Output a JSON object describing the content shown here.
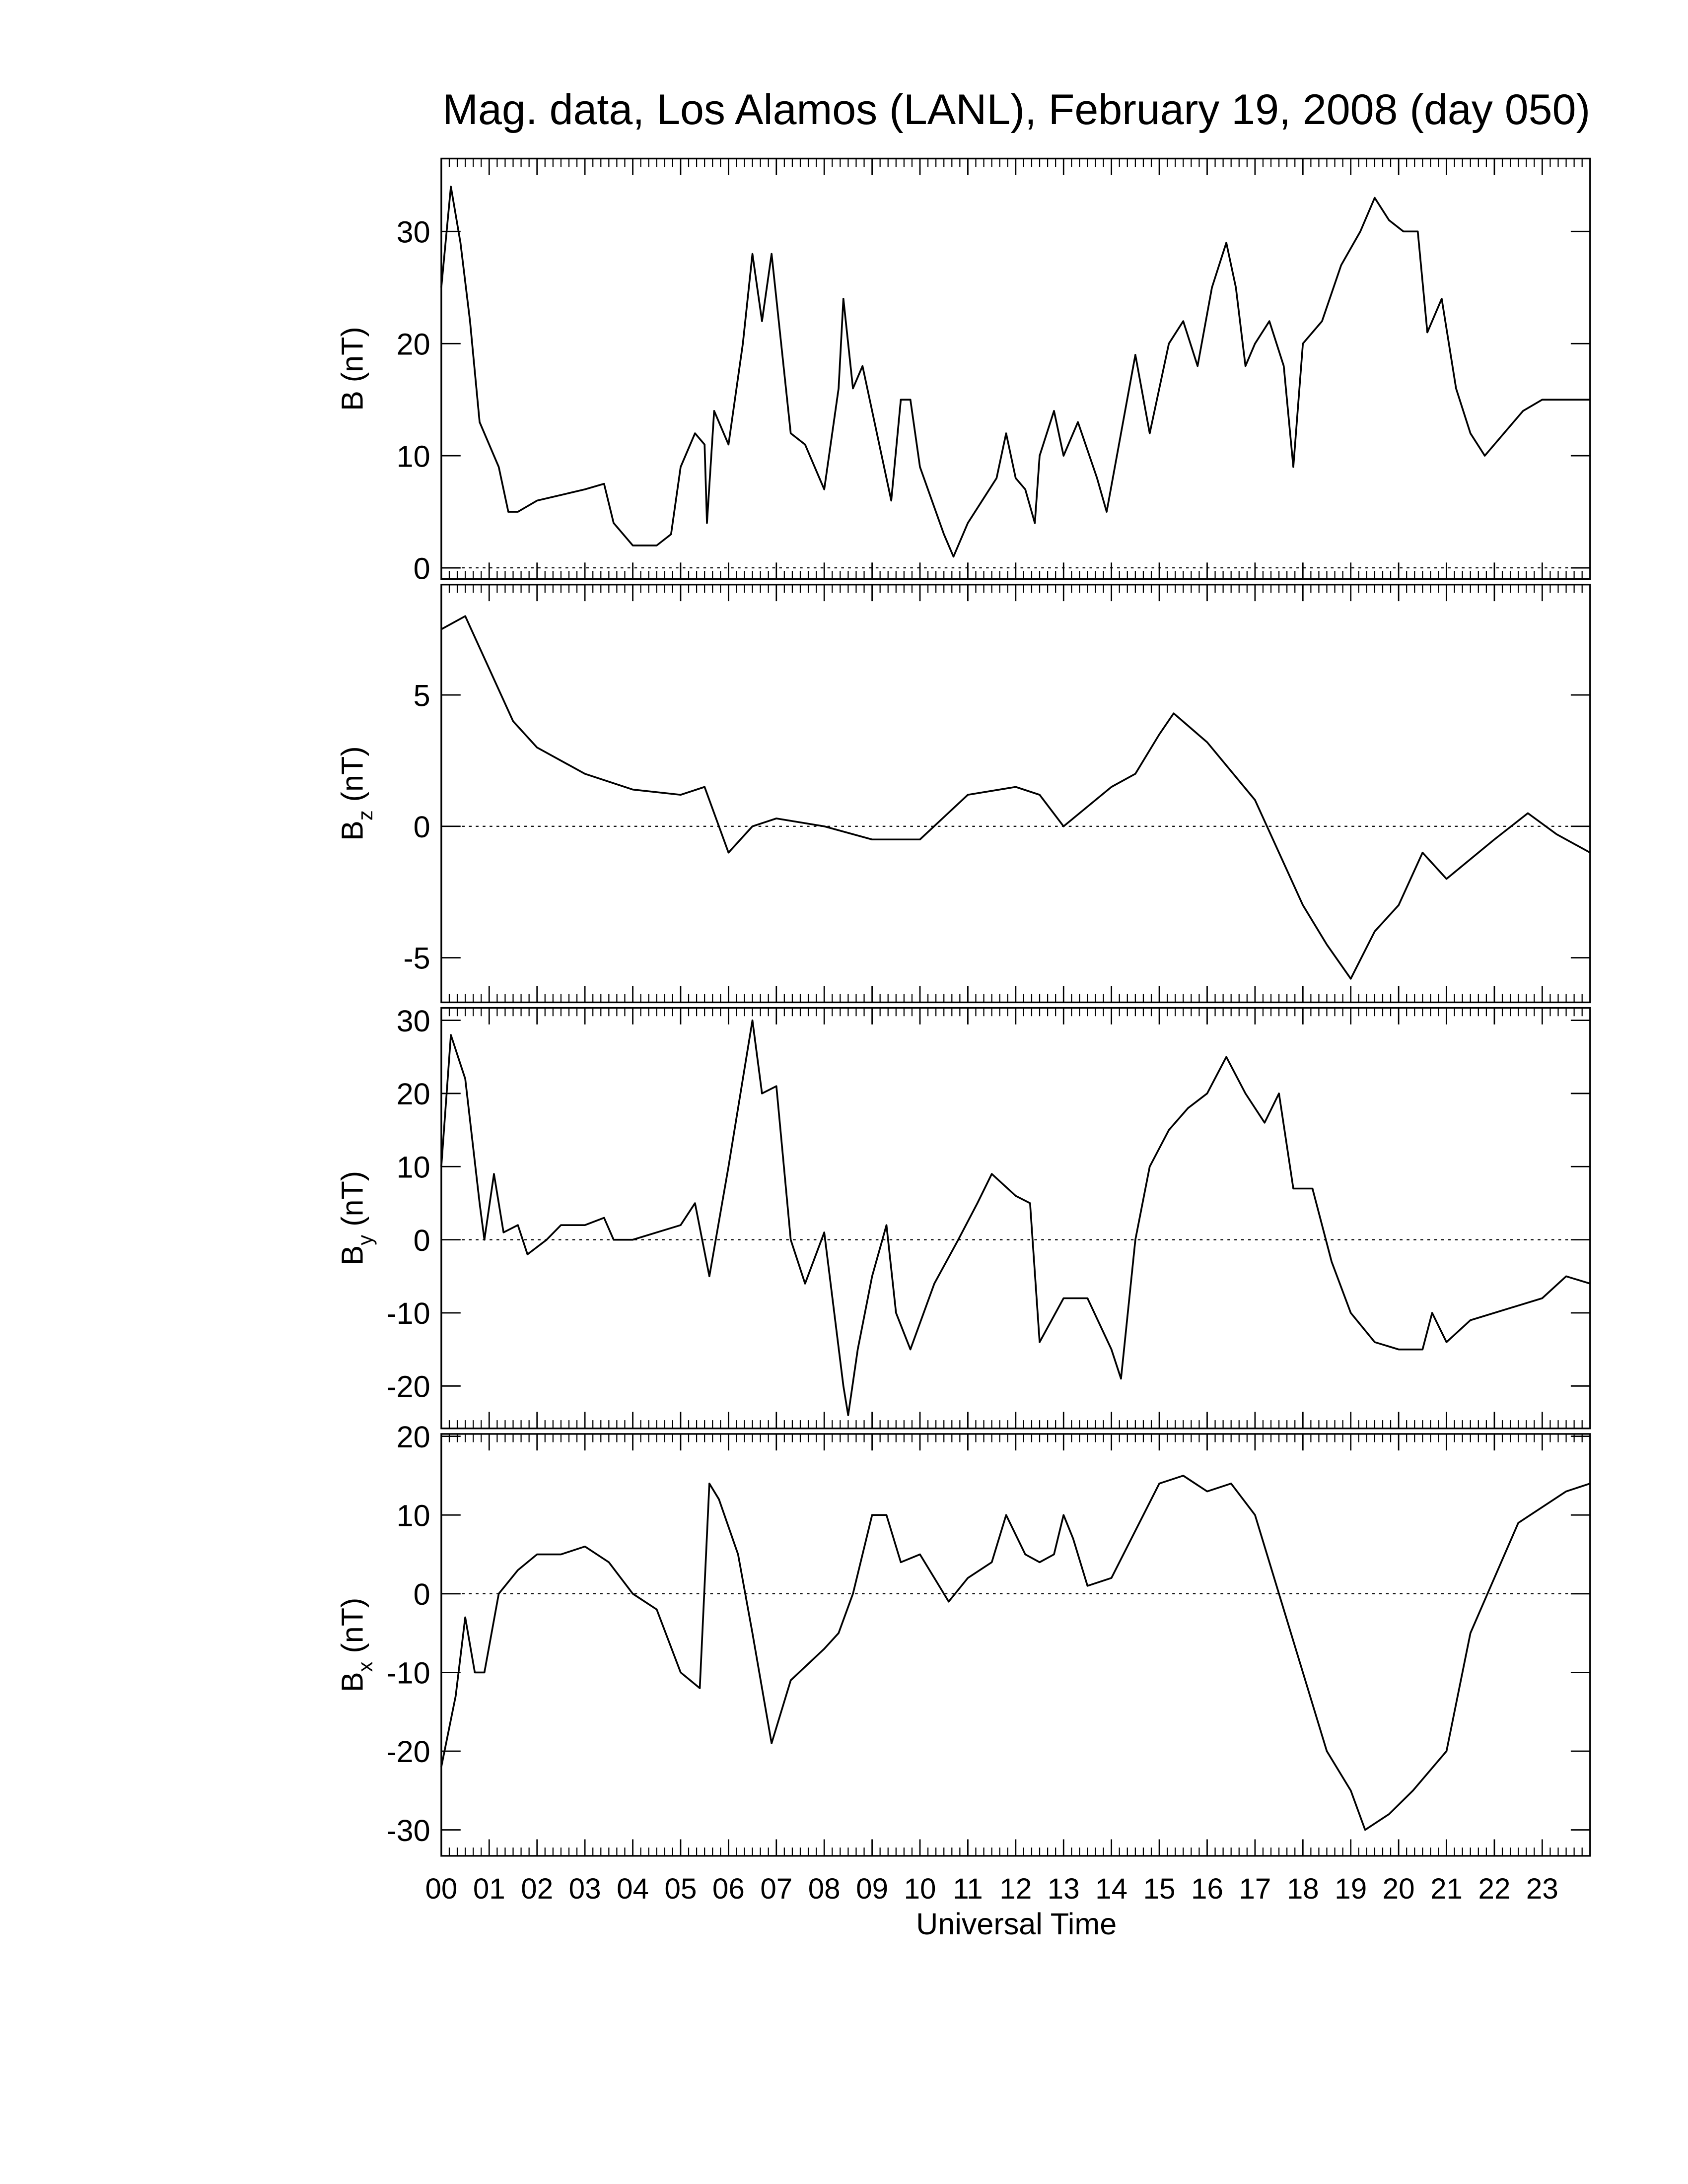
{
  "chart_data": [
    {
      "type": "line",
      "title": "Mag. data, Los Alamos (LANL), February 19, 2008 (day 050)",
      "ylabel": "B (nT)",
      "x": [
        0,
        0.2,
        0.4,
        0.6,
        0.8,
        1.0,
        1.2,
        1.4,
        1.6,
        2,
        2.5,
        3,
        3.4,
        3.6,
        4,
        4.5,
        4.8,
        5,
        5.3,
        5.5,
        5.55,
        5.7,
        6,
        6.3,
        6.5,
        6.7,
        6.9,
        7.1,
        7.3,
        7.6,
        8,
        8.3,
        8.4,
        8.6,
        8.8,
        9,
        9.2,
        9.4,
        9.6,
        9.8,
        10,
        10.5,
        10.7,
        11,
        11.3,
        11.6,
        11.8,
        12,
        12.2,
        12.4,
        12.5,
        12.8,
        13,
        13.3,
        13.7,
        13.9,
        14.2,
        14.5,
        14.8,
        15,
        15.2,
        15.5,
        15.8,
        16.1,
        16.4,
        16.6,
        16.8,
        17,
        17.3,
        17.6,
        17.8,
        18,
        18.4,
        18.8,
        19.2,
        19.5,
        19.8,
        20.1,
        20.4,
        20.6,
        20.9,
        21.2,
        21.5,
        21.8,
        22.2,
        22.6,
        23,
        23.5,
        24
      ],
      "series": [
        {
          "name": "B",
          "color": "#000000",
          "values": [
            25,
            34,
            29,
            22,
            13,
            11,
            9,
            5,
            5,
            6,
            6.5,
            7,
            7.5,
            4,
            2,
            2,
            3,
            9,
            12,
            11,
            4,
            14,
            11,
            20,
            28,
            22,
            28,
            20,
            12,
            11,
            7,
            16,
            24,
            16,
            18,
            14,
            10,
            6,
            15,
            15,
            9,
            3,
            1,
            4,
            6,
            8,
            12,
            8,
            7,
            4,
            10,
            14,
            10,
            13,
            8,
            5,
            12,
            19,
            12,
            16,
            20,
            22,
            18,
            25,
            29,
            25,
            18,
            20,
            22,
            18,
            9,
            20,
            22,
            27,
            30,
            33,
            31,
            30,
            30,
            21,
            24,
            16,
            12,
            10,
            12,
            14,
            15,
            15,
            15
          ]
        }
      ],
      "ylim": [
        -1,
        36.5
      ],
      "yticks": [
        0,
        10,
        20,
        30
      ],
      "zero_line": true
    },
    {
      "type": "line",
      "ylabel": "Bz (nT)",
      "x": [
        0,
        0.5,
        1,
        1.5,
        2,
        3,
        4,
        5,
        5.5,
        5.8,
        6,
        6.5,
        7,
        8,
        9,
        10,
        11,
        12,
        12.5,
        13,
        14,
        14.5,
        15,
        15.3,
        16,
        17,
        17.5,
        18,
        18.5,
        19,
        19.5,
        20,
        20.5,
        21,
        22,
        22.7,
        23.3,
        24
      ],
      "series": [
        {
          "name": "Bz",
          "color": "#000000",
          "values": [
            7.5,
            8,
            6,
            4,
            3,
            2,
            1.4,
            1.2,
            1.5,
            0,
            -1,
            0,
            0.3,
            0,
            -0.5,
            -0.5,
            1.2,
            1.5,
            1.2,
            0,
            1.5,
            2,
            3.5,
            4.3,
            3.2,
            1,
            -1,
            -3,
            -4.5,
            -5.8,
            -4,
            -3,
            -1,
            -2,
            -0.5,
            0.5,
            -0.3,
            -1
          ]
        }
      ],
      "ylim": [
        -6.7,
        9.2
      ],
      "yticks": [
        -5,
        0,
        5
      ],
      "zero_line": true
    },
    {
      "type": "line",
      "ylabel": "By (nT)",
      "x": [
        0,
        0.2,
        0.5,
        0.8,
        0.9,
        1.1,
        1.3,
        1.6,
        1.8,
        2.2,
        2.5,
        3,
        3.4,
        3.6,
        4,
        5,
        5.3,
        5.6,
        6,
        6.3,
        6.5,
        6.7,
        7,
        7.3,
        7.6,
        8,
        8.4,
        8.5,
        8.7,
        9,
        9.3,
        9.5,
        9.8,
        10.3,
        10.8,
        11.2,
        11.5,
        12,
        12.3,
        12.5,
        13,
        13.5,
        14,
        14.2,
        14.5,
        14.8,
        15.2,
        15.6,
        16,
        16.4,
        16.8,
        17.2,
        17.5,
        17.8,
        18.2,
        18.6,
        19,
        19.5,
        20,
        20.5,
        20.7,
        21,
        21.5,
        22,
        23,
        23.5,
        24
      ],
      "series": [
        {
          "name": "By",
          "color": "#000000",
          "values": [
            10,
            28,
            22,
            5,
            0,
            9,
            1,
            2,
            -2,
            0,
            2,
            2,
            3,
            0,
            0,
            2,
            5,
            -5,
            10,
            22,
            30,
            20,
            21,
            0,
            -6,
            1,
            -20,
            -24,
            -15,
            -5,
            2,
            -10,
            -15,
            -6,
            0,
            5,
            9,
            6,
            5,
            -14,
            -8,
            -8,
            -15,
            -19,
            0,
            10,
            15,
            18,
            20,
            25,
            20,
            16,
            20,
            7,
            7,
            -3,
            -10,
            -14,
            -15,
            -15,
            -10,
            -14,
            -11,
            -10,
            -8,
            -5,
            -6
          ]
        }
      ],
      "ylim": [
        -25.8,
        31.7
      ],
      "yticks": [
        -20,
        -10,
        0,
        10,
        20,
        30
      ],
      "zero_line": true
    },
    {
      "type": "line",
      "ylabel": "Bx (nT)",
      "xlabel": "Universal Time",
      "x": [
        0,
        0.3,
        0.5,
        0.7,
        0.9,
        1.2,
        1.6,
        2,
        2.5,
        3,
        3.5,
        4,
        4.5,
        5,
        5.4,
        5.6,
        5.8,
        6.2,
        6.5,
        6.9,
        7.3,
        8,
        8.3,
        8.6,
        9,
        9.3,
        9.6,
        10,
        10.3,
        10.6,
        11,
        11.5,
        11.8,
        12.2,
        12.5,
        12.8,
        13,
        13.2,
        13.5,
        14,
        14.5,
        15,
        15.5,
        16,
        16.5,
        17,
        17.5,
        18,
        18.5,
        19,
        19.3,
        19.8,
        20.3,
        21,
        21.5,
        22,
        22.5,
        23,
        23.5,
        24
      ],
      "series": [
        {
          "name": "Bx",
          "color": "#000000",
          "values": [
            -22,
            -13,
            -3,
            -10,
            -10,
            0,
            3,
            5,
            5,
            6,
            4,
            0,
            -2,
            -10,
            -12,
            14,
            12,
            5,
            -5,
            -19,
            -11,
            -7,
            -5,
            0,
            10,
            10,
            4,
            5,
            2,
            -1,
            2,
            4,
            10,
            5,
            4,
            5,
            10,
            7,
            1,
            2,
            8,
            14,
            15,
            13,
            14,
            10,
            0,
            -10,
            -20,
            -25,
            -30,
            -28,
            -25,
            -20,
            -5,
            2,
            9,
            11,
            13,
            14
          ]
        }
      ],
      "xlim": [
        0,
        24
      ],
      "xticks": [
        {
          "value": 0,
          "label": "00"
        },
        {
          "value": 1,
          "label": "01"
        },
        {
          "value": 2,
          "label": "02"
        },
        {
          "value": 3,
          "label": "03"
        },
        {
          "value": 4,
          "label": "04"
        },
        {
          "value": 5,
          "label": "05"
        },
        {
          "value": 6,
          "label": "06"
        },
        {
          "value": 7,
          "label": "07"
        },
        {
          "value": 8,
          "label": "08"
        },
        {
          "value": 9,
          "label": "09"
        },
        {
          "value": 10,
          "label": "10"
        },
        {
          "value": 11,
          "label": "11"
        },
        {
          "value": 12,
          "label": "12"
        },
        {
          "value": 13,
          "label": "13"
        },
        {
          "value": 14,
          "label": "14"
        },
        {
          "value": 15,
          "label": "15"
        },
        {
          "value": 16,
          "label": "16"
        },
        {
          "value": 17,
          "label": "17"
        },
        {
          "value": 18,
          "label": "18"
        },
        {
          "value": 19,
          "label": "19"
        },
        {
          "value": 20,
          "label": "20"
        },
        {
          "value": 21,
          "label": "21"
        },
        {
          "value": 22,
          "label": "22"
        },
        {
          "value": 23,
          "label": "23"
        }
      ],
      "ylim": [
        -33.3,
        20.3
      ],
      "yticks": [
        -30,
        -20,
        -10,
        0,
        10,
        20
      ],
      "zero_line": true
    }
  ]
}
